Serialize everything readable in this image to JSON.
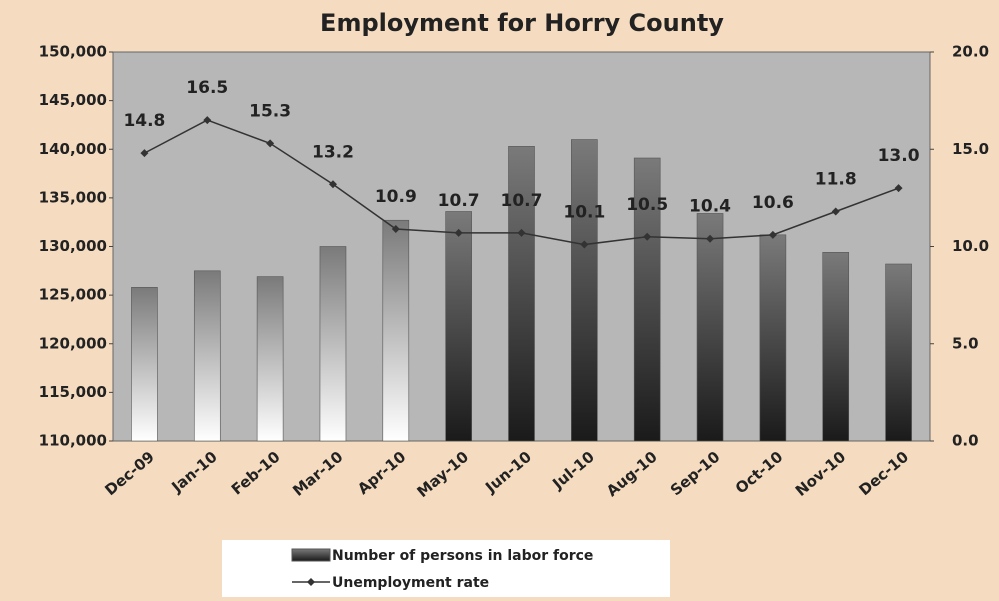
{
  "chart_data": {
    "type": "bar_line",
    "title": "Employment for Horry County",
    "categories": [
      "Dec-09",
      "Jan-10",
      "Feb-10",
      "Mar-10",
      "Apr-10",
      "May-10",
      "Jun-10",
      "Jul-10",
      "Aug-10",
      "Sep-10",
      "Oct-10",
      "Nov-10",
      "Dec-10"
    ],
    "series": [
      {
        "name": "Number of persons in labor force",
        "type": "bar",
        "color": "#7a7a7a",
        "values": [
          125800,
          127500,
          126900,
          130000,
          132700,
          133600,
          140300,
          141000,
          139100,
          133400,
          131200,
          129400,
          128200
        ]
      },
      {
        "name": "Unemployment rate",
        "type": "line",
        "axis": "y2",
        "color": "#333333",
        "values": [
          14.8,
          16.5,
          15.3,
          13.2,
          10.9,
          10.7,
          10.7,
          10.1,
          10.5,
          10.4,
          10.6,
          11.8,
          13.0
        ],
        "value_labels": [
          "14.8",
          "16.5",
          "15.3",
          "13.2",
          "10.9",
          "10.7",
          "10.7",
          "10.1",
          "10.5",
          "10.4",
          "10.6",
          "11.8",
          "13.0"
        ]
      }
    ],
    "ylim": [
      110000,
      150000
    ],
    "yticks": [
      {
        "value": 110000,
        "label": "110,000"
      },
      {
        "value": 115000,
        "label": "115,000"
      },
      {
        "value": 120000,
        "label": "120,000"
      },
      {
        "value": 125000,
        "label": "125,000"
      },
      {
        "value": 130000,
        "label": "130,000"
      },
      {
        "value": 135000,
        "label": "135,000"
      },
      {
        "value": 140000,
        "label": "140,000"
      },
      {
        "value": 145000,
        "label": "145,000"
      },
      {
        "value": 150000,
        "label": "150,000"
      }
    ],
    "y2lim": [
      0,
      20
    ],
    "y2ticks": [
      {
        "value": 0,
        "label": "0.0"
      },
      {
        "value": 5,
        "label": "5.0"
      },
      {
        "value": 10,
        "label": "10.0"
      },
      {
        "value": 15,
        "label": "15.0"
      },
      {
        "value": 20,
        "label": "20.0"
      }
    ],
    "legend": "bottom"
  }
}
